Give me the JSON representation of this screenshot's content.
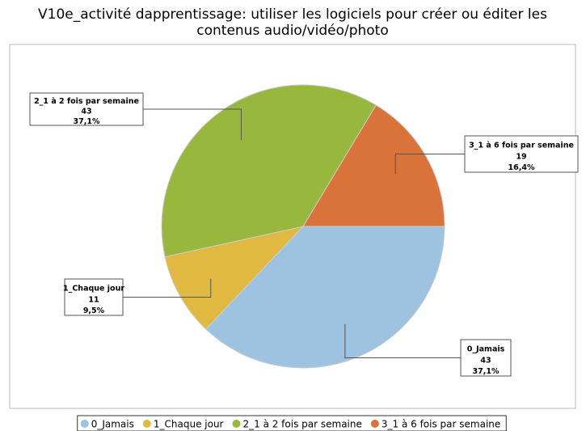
{
  "chart_data": {
    "type": "pie",
    "title": "V10e_activité dapprentissage: utiliser les logiciels pour créer ou éditer les contenus audio/vidéo/photo",
    "title_lines": [
      "V10e_activité dapprentissage: utiliser les logiciels pour créer ou éditer les",
      "contenus audio/vidéo/photo"
    ],
    "categories": [
      "0_Jamais",
      "1_Chaque jour",
      "2_1 à 2 fois par semaine",
      "3_1 à 6 fois par semaine"
    ],
    "values": [
      43,
      11,
      43,
      19
    ],
    "percent_labels": [
      "37,1%",
      "9,5%",
      "37,1%",
      "16,4%"
    ],
    "colors": [
      "#9dc3e0",
      "#e2b940",
      "#97b83c",
      "#d9733a"
    ],
    "legend": "bottom"
  }
}
